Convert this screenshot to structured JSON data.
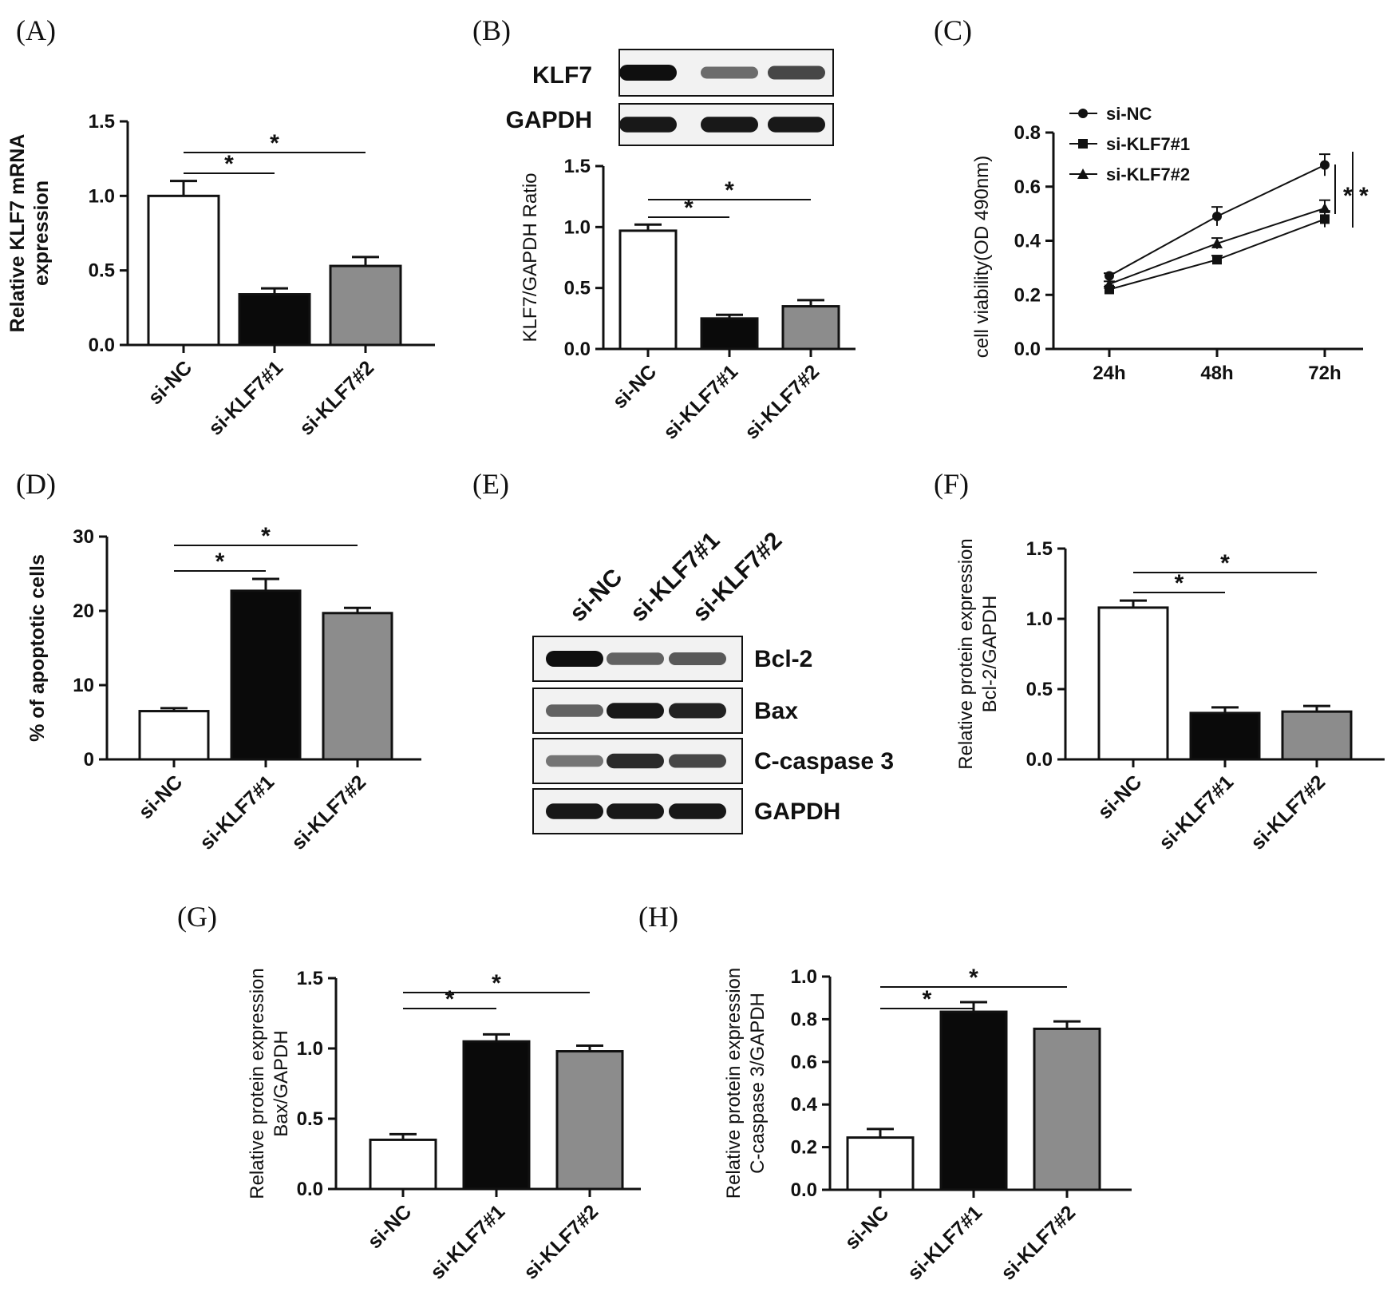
{
  "panel_labels": [
    "(A)",
    "(B)",
    "(C)",
    "(D)",
    "(E)",
    "(F)",
    "(G)",
    "(H)"
  ],
  "colors": {
    "white": "#ffffff",
    "black": "#0a0a0a",
    "gray": "#8c8c8c",
    "ink": "#111111"
  },
  "chart_data": [
    {
      "id": "A",
      "type": "bar",
      "categories": [
        "si-NC",
        "si-KLF7#1",
        "si-KLF7#2"
      ],
      "values": [
        1.0,
        0.34,
        0.53
      ],
      "errors": [
        0.1,
        0.04,
        0.06
      ],
      "ylabel": "Relative KLF7 mRNA expression",
      "ylim": [
        0,
        1.5
      ],
      "yticks": [
        "0.0",
        "0.5",
        "1.0",
        "1.5"
      ],
      "significance": [
        "*",
        "*"
      ]
    },
    {
      "id": "B",
      "type": "bar",
      "categories": [
        "si-NC",
        "si-KLF7#1",
        "si-KLF7#2"
      ],
      "values": [
        0.97,
        0.25,
        0.35
      ],
      "errors": [
        0.05,
        0.03,
        0.05
      ],
      "ylabel": "KLF7/GAPDH Ratio",
      "ylim": [
        0,
        1.5
      ],
      "yticks": [
        "0.0",
        "0.5",
        "1.0",
        "1.5"
      ],
      "significance": [
        "*",
        "*"
      ],
      "blot_labels": [
        "KLF7",
        "GAPDH"
      ]
    },
    {
      "id": "C",
      "type": "line",
      "x": [
        "24h",
        "48h",
        "72h"
      ],
      "series": [
        {
          "name": "si-NC",
          "values": [
            0.27,
            0.49,
            0.68
          ],
          "errors": [
            0.01,
            0.035,
            0.04
          ]
        },
        {
          "name": "si-KLF7#1",
          "values": [
            0.22,
            0.33,
            0.48
          ],
          "errors": [
            0.01,
            0.015,
            0.03
          ]
        },
        {
          "name": "si-KLF7#2",
          "values": [
            0.24,
            0.39,
            0.52
          ],
          "errors": [
            0.01,
            0.02,
            0.03
          ]
        }
      ],
      "ylabel": "cell viability(OD 490nm)",
      "ylim": [
        0,
        0.8
      ],
      "yticks": [
        "0.0",
        "0.2",
        "0.4",
        "0.6",
        "0.8"
      ],
      "significance": [
        "*",
        "*"
      ]
    },
    {
      "id": "D",
      "type": "bar",
      "categories": [
        "si-NC",
        "si-KLF7#1",
        "si-KLF7#2"
      ],
      "values": [
        6.5,
        22.7,
        19.7
      ],
      "errors": [
        0.4,
        1.6,
        0.7
      ],
      "ylabel": "% of apoptotic cells",
      "ylim": [
        0,
        30
      ],
      "yticks": [
        "0",
        "10",
        "20",
        "30"
      ],
      "significance": [
        "*",
        "*"
      ]
    },
    {
      "id": "F",
      "type": "bar",
      "categories": [
        "si-NC",
        "si-KLF7#1",
        "si-KLF7#2"
      ],
      "values": [
        1.08,
        0.33,
        0.34
      ],
      "errors": [
        0.05,
        0.04,
        0.04
      ],
      "ylabel": "Relative protein expression",
      "ylabel2": "Bcl-2/GAPDH",
      "ylim": [
        0,
        1.5
      ],
      "yticks": [
        "0.0",
        "0.5",
        "1.0",
        "1.5"
      ],
      "significance": [
        "*",
        "*"
      ]
    },
    {
      "id": "G",
      "type": "bar",
      "categories": [
        "si-NC",
        "si-KLF7#1",
        "si-KLF7#2"
      ],
      "values": [
        0.35,
        1.05,
        0.98
      ],
      "errors": [
        0.04,
        0.05,
        0.04
      ],
      "ylabel": "Relative protein expression",
      "ylabel2": "Bax/GAPDH",
      "ylim": [
        0,
        1.5
      ],
      "yticks": [
        "0.0",
        "0.5",
        "1.0",
        "1.5"
      ],
      "significance": [
        "*",
        "*"
      ]
    },
    {
      "id": "H",
      "type": "bar",
      "categories": [
        "si-NC",
        "si-KLF7#1",
        "si-KLF7#2"
      ],
      "values": [
        0.245,
        0.835,
        0.755
      ],
      "errors": [
        0.04,
        0.045,
        0.035
      ],
      "ylabel": "Relative protein expression",
      "ylabel2": "C-caspase 3/GAPDH",
      "ylim": [
        0,
        1.0
      ],
      "yticks": [
        "0.0",
        "0.2",
        "0.4",
        "0.6",
        "0.8",
        "1.0"
      ],
      "significance": [
        "*",
        "*"
      ]
    }
  ],
  "blot_E": {
    "lanes": [
      "si-NC",
      "si-KLF7#1",
      "si-KLF7#2"
    ],
    "rows": [
      {
        "label": "Bcl-2",
        "intensity": [
          1.0,
          0.55,
          0.6
        ]
      },
      {
        "label": "Bax",
        "intensity": [
          0.55,
          0.95,
          0.9
        ]
      },
      {
        "label": "C-caspase 3",
        "intensity": [
          0.45,
          0.85,
          0.7
        ]
      },
      {
        "label": "GAPDH",
        "intensity": [
          0.95,
          0.95,
          0.95
        ]
      }
    ]
  },
  "blot_B_intensity": [
    [
      1.0,
      0.5,
      0.7
    ],
    [
      0.95,
      0.95,
      0.95
    ]
  ]
}
